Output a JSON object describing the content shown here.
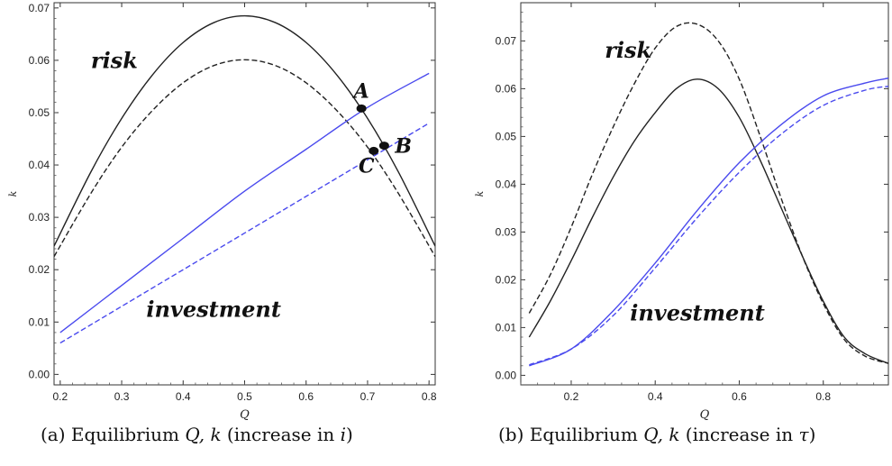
{
  "chart_data": [
    {
      "type": "line",
      "caption": {
        "prefix": "(a) Equilibrium ",
        "vars": "Q, k",
        "suffix_open": " (increase in ",
        "param": "i",
        "suffix_close": ")"
      },
      "xlabel": "Q",
      "ylabel": "k",
      "xlim": [
        0.19,
        0.81
      ],
      "ylim": [
        -0.002,
        0.071
      ],
      "xticks": [
        0.2,
        0.3,
        0.4,
        0.5,
        0.6,
        0.7,
        0.8
      ],
      "xtick_labels": [
        "0.2",
        "0.3",
        "0.4",
        "0.5",
        "0.6",
        "0.7",
        "0.8"
      ],
      "yticks": [
        0.0,
        0.01,
        0.02,
        0.03,
        0.04,
        0.05,
        0.06,
        0.07
      ],
      "ytick_labels": [
        "0.00",
        "0.01",
        "0.02",
        "0.03",
        "0.04",
        "0.05",
        "0.06",
        "0.07"
      ],
      "grid": false,
      "legend": "none",
      "series": [
        {
          "color": "#222222",
          "dash": "solid",
          "x": [
            0.19,
            0.25,
            0.3,
            0.35,
            0.4,
            0.45,
            0.5,
            0.55,
            0.6,
            0.65,
            0.7,
            0.75,
            0.81
          ],
          "y": [
            0.0245,
            0.0387,
            0.0489,
            0.0572,
            0.0634,
            0.0672,
            0.0685,
            0.0672,
            0.0634,
            0.0572,
            0.0489,
            0.0387,
            0.0245
          ]
        },
        {
          "color": "#222222",
          "dash": "dashed",
          "x": [
            0.19,
            0.25,
            0.3,
            0.35,
            0.4,
            0.45,
            0.5,
            0.55,
            0.6,
            0.65,
            0.7,
            0.75,
            0.81
          ],
          "y": [
            0.0225,
            0.0346,
            0.0434,
            0.0504,
            0.0557,
            0.059,
            0.0601,
            0.059,
            0.0557,
            0.0504,
            0.0434,
            0.0346,
            0.0225
          ]
        },
        {
          "color": "#4a4aee",
          "dash": "solid",
          "x": [
            0.2,
            0.3,
            0.4,
            0.5,
            0.6,
            0.7,
            0.8
          ],
          "y": [
            0.008,
            0.017,
            0.026,
            0.035,
            0.043,
            0.051,
            0.0575
          ]
        },
        {
          "color": "#4a4aee",
          "dash": "dashed",
          "x": [
            0.2,
            0.3,
            0.4,
            0.5,
            0.6,
            0.7,
            0.8
          ],
          "y": [
            0.006,
            0.013,
            0.02,
            0.027,
            0.034,
            0.041,
            0.048
          ]
        }
      ],
      "points": [
        {
          "label": "A",
          "x": 0.69,
          "y": 0.0508
        },
        {
          "label": "B",
          "x": 0.727,
          "y": 0.0437
        },
        {
          "label": "C",
          "x": 0.71,
          "y": 0.0427
        }
      ],
      "annotations": [
        {
          "text": "risk",
          "x": 0.25,
          "y": 0.0585
        },
        {
          "text": "investment",
          "x": 0.34,
          "y": 0.011
        }
      ]
    },
    {
      "type": "line",
      "caption": {
        "prefix": "(b) Equilibrium ",
        "vars": "Q, k",
        "suffix_open": " (increase in ",
        "param": "τ",
        "suffix_close": ")"
      },
      "xlabel": "Q",
      "ylabel": "k",
      "xlim": [
        0.08,
        0.955
      ],
      "ylim": [
        -0.002,
        0.078
      ],
      "xticks": [
        0.2,
        0.4,
        0.6,
        0.8
      ],
      "xtick_labels": [
        "0.2",
        "0.4",
        "0.6",
        "0.8"
      ],
      "yticks": [
        0.0,
        0.01,
        0.02,
        0.03,
        0.04,
        0.05,
        0.06,
        0.07
      ],
      "ytick_labels": [
        "0.00",
        "0.01",
        "0.02",
        "0.03",
        "0.04",
        "0.05",
        "0.06",
        "0.07"
      ],
      "grid": false,
      "legend": "none",
      "series": [
        {
          "color": "#222222",
          "dash": "solid",
          "x": [
            0.1,
            0.15,
            0.2,
            0.25,
            0.3,
            0.35,
            0.4,
            0.45,
            0.5,
            0.55,
            0.6,
            0.65,
            0.7,
            0.75,
            0.8,
            0.85,
            0.9,
            0.955
          ],
          "y": [
            0.008,
            0.0155,
            0.024,
            0.033,
            0.0415,
            0.049,
            0.055,
            0.06,
            0.062,
            0.06,
            0.054,
            0.045,
            0.035,
            0.025,
            0.0155,
            0.008,
            0.0045,
            0.0025
          ]
        },
        {
          "color": "#222222",
          "dash": "dashed",
          "x": [
            0.1,
            0.15,
            0.2,
            0.25,
            0.3,
            0.35,
            0.4,
            0.45,
            0.5,
            0.55,
            0.6,
            0.65,
            0.7,
            0.75,
            0.8,
            0.85,
            0.9,
            0.955
          ],
          "y": [
            0.013,
            0.021,
            0.031,
            0.042,
            0.052,
            0.061,
            0.0685,
            0.073,
            0.0735,
            0.07,
            0.062,
            0.05,
            0.037,
            0.025,
            0.015,
            0.0075,
            0.004,
            0.0025
          ]
        },
        {
          "color": "#4a4aee",
          "dash": "solid",
          "x": [
            0.1,
            0.2,
            0.3,
            0.4,
            0.5,
            0.6,
            0.7,
            0.8,
            0.9,
            0.955
          ],
          "y": [
            0.002,
            0.0055,
            0.0135,
            0.0235,
            0.0345,
            0.0445,
            0.0525,
            0.0585,
            0.0612,
            0.0622
          ]
        },
        {
          "color": "#4a4aee",
          "dash": "dashed",
          "x": [
            0.1,
            0.2,
            0.3,
            0.4,
            0.5,
            0.6,
            0.7,
            0.8,
            0.9,
            0.955
          ],
          "y": [
            0.0022,
            0.0055,
            0.0125,
            0.0225,
            0.033,
            0.0425,
            0.0505,
            0.0565,
            0.0597,
            0.0605
          ]
        }
      ],
      "points": [],
      "annotations": [
        {
          "text": "risk",
          "x": 0.28,
          "y": 0.0665
        },
        {
          "text": "investment",
          "x": 0.34,
          "y": 0.0115
        }
      ]
    }
  ]
}
